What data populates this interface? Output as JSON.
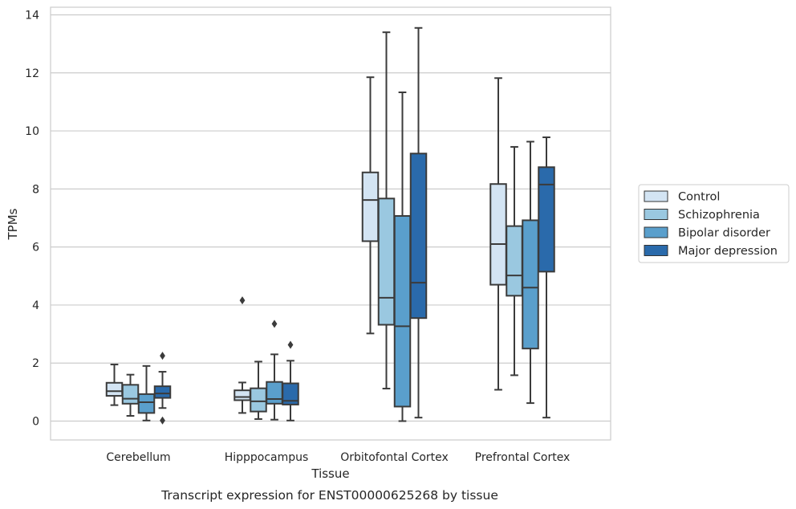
{
  "chart_data": {
    "type": "box",
    "caption": "Transcript expression for ENST00000625268 by tissue",
    "xlabel": "Tissue",
    "ylabel": "TPMs",
    "ylim": [
      -0.65,
      14.25
    ],
    "yticks": [
      0,
      2,
      4,
      6,
      8,
      10,
      12,
      14
    ],
    "ytick_labels": [
      "0",
      "2",
      "4",
      "6",
      "8",
      "10",
      "12",
      "14"
    ],
    "grid": "horizontal",
    "legend_position": "right",
    "categories": [
      "Cerebellum",
      "Hipppocampus",
      "Orbitofontal Cortex",
      "Prefrontal Cortex"
    ],
    "series": [
      {
        "name": "Control",
        "color": "#d3e4f3",
        "boxes": [
          {
            "whislo": 0.55,
            "q1": 0.87,
            "med": 1.03,
            "q3": 1.32,
            "whishi": 1.95,
            "fliers": []
          },
          {
            "whislo": 0.28,
            "q1": 0.72,
            "med": 0.83,
            "q3": 1.06,
            "whishi": 1.33,
            "fliers": [
              4.16
            ]
          },
          {
            "whislo": 3.02,
            "q1": 6.2,
            "med": 7.62,
            "q3": 8.57,
            "whishi": 11.85,
            "fliers": []
          },
          {
            "whislo": 1.08,
            "q1": 4.7,
            "med": 6.1,
            "q3": 8.17,
            "whishi": 11.82,
            "fliers": []
          }
        ]
      },
      {
        "name": "Schizophrenia",
        "color": "#9ac8e0",
        "boxes": [
          {
            "whislo": 0.18,
            "q1": 0.6,
            "med": 0.77,
            "q3": 1.25,
            "whishi": 1.6,
            "fliers": []
          },
          {
            "whislo": 0.07,
            "q1": 0.33,
            "med": 0.68,
            "q3": 1.13,
            "whishi": 2.05,
            "fliers": []
          },
          {
            "whislo": 1.12,
            "q1": 3.32,
            "med": 4.25,
            "q3": 7.67,
            "whishi": 13.4,
            "fliers": []
          },
          {
            "whislo": 1.58,
            "q1": 4.32,
            "med": 5.02,
            "q3": 6.72,
            "whishi": 9.45,
            "fliers": []
          }
        ]
      },
      {
        "name": "Bipolar disorder",
        "color": "#5a9fcc",
        "boxes": [
          {
            "whislo": 0.02,
            "q1": 0.28,
            "med": 0.65,
            "q3": 0.93,
            "whishi": 1.9,
            "fliers": []
          },
          {
            "whislo": 0.05,
            "q1": 0.6,
            "med": 0.76,
            "q3": 1.35,
            "whishi": 2.3,
            "fliers": [
              3.35
            ]
          },
          {
            "whislo": 0.0,
            "q1": 0.5,
            "med": 3.27,
            "q3": 7.07,
            "whishi": 11.33,
            "fliers": []
          },
          {
            "whislo": 0.62,
            "q1": 2.5,
            "med": 4.6,
            "q3": 6.92,
            "whishi": 9.63,
            "fliers": []
          }
        ]
      },
      {
        "name": "Major depression",
        "color": "#2a6aab",
        "boxes": [
          {
            "whislo": 0.45,
            "q1": 0.8,
            "med": 0.95,
            "q3": 1.2,
            "whishi": 1.7,
            "fliers": [
              2.25,
              0.02
            ]
          },
          {
            "whislo": 0.02,
            "q1": 0.57,
            "med": 0.7,
            "q3": 1.3,
            "whishi": 2.08,
            "fliers": [
              2.63
            ]
          },
          {
            "whislo": 0.12,
            "q1": 3.55,
            "med": 4.77,
            "q3": 9.22,
            "whishi": 13.55,
            "fliers": []
          },
          {
            "whislo": 0.12,
            "q1": 5.15,
            "med": 8.15,
            "q3": 8.75,
            "whishi": 9.78,
            "fliers": []
          }
        ]
      }
    ]
  }
}
